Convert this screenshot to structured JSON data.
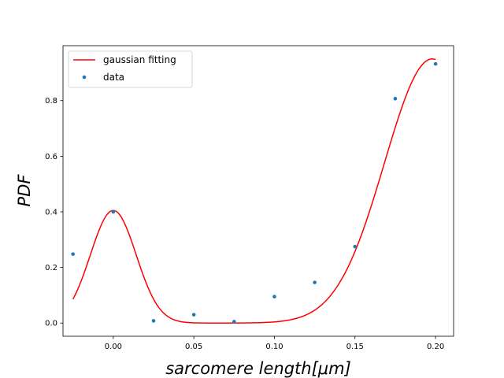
{
  "chart_data": {
    "type": "scatter",
    "title": "",
    "xlabel": "sarcomere length[μm]",
    "ylabel": "PDF",
    "xlim": [
      -0.0312,
      0.2112
    ],
    "ylim": [
      -0.0475,
      0.9975
    ],
    "x_ticks": [
      0.0,
      0.05,
      0.1,
      0.15,
      0.2
    ],
    "x_tick_labels": [
      "0.00",
      "0.05",
      "0.10",
      "0.15",
      "0.20"
    ],
    "y_ticks": [
      0.0,
      0.2,
      0.4,
      0.6,
      0.8
    ],
    "y_tick_labels": [
      "0.0",
      "0.2",
      "0.4",
      "0.6",
      "0.8"
    ],
    "grid": false,
    "legend_position": "upper-left",
    "series": [
      {
        "name": "gaussian fitting",
        "kind": "line",
        "color": "#ff0000",
        "components": [
          {
            "amplitude": 0.405,
            "mean": 0.0,
            "sigma": 0.0142
          },
          {
            "amplitude": 0.95,
            "mean": 0.198,
            "sigma": 0.0297
          }
        ],
        "x_range": [
          -0.025,
          0.2
        ]
      },
      {
        "name": "data",
        "kind": "scatter",
        "color": "#1f77b4",
        "x": [
          -0.025,
          0.0,
          0.025,
          0.05,
          0.075,
          0.1,
          0.125,
          0.15,
          0.175,
          0.2
        ],
        "y": [
          0.248,
          0.4,
          0.008,
          0.03,
          0.005,
          0.095,
          0.146,
          0.275,
          0.807,
          0.932
        ]
      }
    ]
  }
}
